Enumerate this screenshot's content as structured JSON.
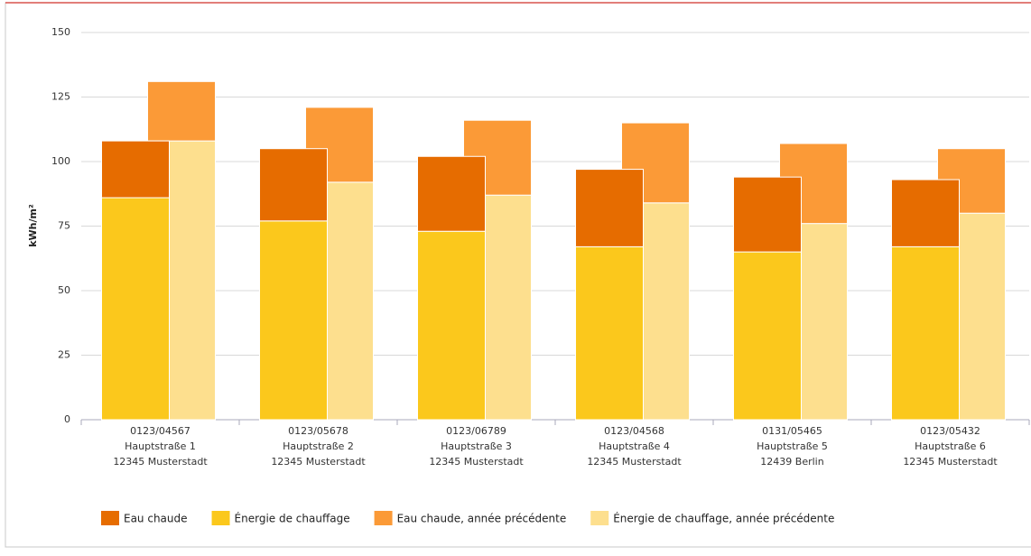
{
  "chart_data": {
    "type": "bar",
    "y_label": "kWh/m²",
    "categories": [
      [
        "0123/04567",
        "Hauptstraße 1",
        "12345 Musterstadt"
      ],
      [
        "0123/05678",
        "Hauptstraße 2",
        "12345 Musterstadt"
      ],
      [
        "0123/06789",
        "Hauptstraße 3",
        "12345 Musterstadt"
      ],
      [
        "0123/04568",
        "Hauptstraße 4",
        "12345 Musterstadt"
      ],
      [
        "0131/05465",
        "Hauptstraße 5",
        "12439 Berlin"
      ],
      [
        "0123/05432",
        "Hauptstraße 6",
        "12345 Musterstadt"
      ]
    ],
    "series": [
      {
        "name": "Eau chaude",
        "color": "#e66c00",
        "values": [
          22,
          28,
          29,
          30,
          29,
          26
        ]
      },
      {
        "name": "Énergie de chauffage",
        "color": "#fbc81c",
        "values": [
          86,
          77,
          73,
          67,
          65,
          67
        ]
      },
      {
        "name": "Eau chaude, année précédente",
        "color": "#fb9a37",
        "values": [
          23,
          29,
          29,
          31,
          31,
          25
        ]
      },
      {
        "name": "Énergie de chauffage, année précédente",
        "color": "#fddf8e",
        "values": [
          108,
          92,
          87,
          84,
          76,
          80
        ]
      }
    ],
    "ylim": [
      0,
      150
    ],
    "yticks": [
      0,
      25,
      50,
      75,
      100,
      125,
      150
    ],
    "grid": true
  }
}
